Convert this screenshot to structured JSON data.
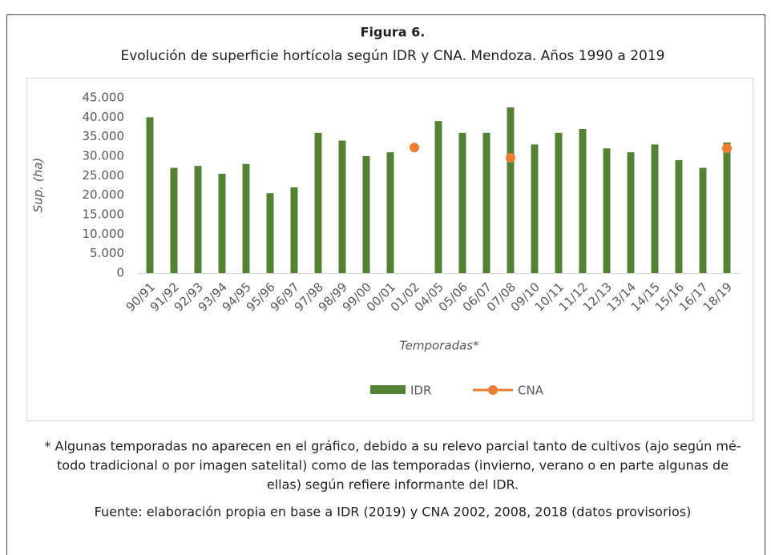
{
  "chart_data": {
    "type": "bar",
    "title": "Figura 6.",
    "subtitle": "Evolución de superficie hortícola según IDR y CNA. Mendoza. Años 1990 a 2019",
    "y_label": "Sup. (ha)",
    "x_label": "Temporadas*",
    "categories": [
      "90/91",
      "91/92",
      "92/93",
      "93/94",
      "94/95",
      "95/96",
      "96/97",
      "97/98",
      "98/99",
      "99/00",
      "00/01",
      "01/02",
      "04/05",
      "05/06",
      "06/07",
      "07/08",
      "09/10",
      "10/11",
      "11/12",
      "12/13",
      "13/14",
      "14/15",
      "15/16",
      "16/17",
      "18/19"
    ],
    "series": [
      {
        "name": "IDR",
        "type": "bar",
        "color": "#548235",
        "values": [
          40000,
          27000,
          27500,
          25500,
          28000,
          20500,
          22000,
          36000,
          34000,
          30000,
          31000,
          null,
          39000,
          36000,
          36000,
          42500,
          33000,
          36000,
          37000,
          32000,
          31000,
          33000,
          29000,
          27000,
          33500
        ]
      },
      {
        "name": "CNA",
        "type": "scatter",
        "color": "#ED7D31",
        "values": [
          null,
          null,
          null,
          null,
          null,
          null,
          null,
          null,
          null,
          null,
          null,
          32200,
          null,
          null,
          null,
          29600,
          null,
          null,
          null,
          null,
          null,
          null,
          null,
          null,
          32000
        ]
      }
    ],
    "ylim": [
      0,
      45000
    ],
    "yticks": [
      0,
      {
        "value": 5000,
        "label": "5.000"
      },
      {
        "value": 10000,
        "label": "10.000"
      },
      {
        "value": 15000,
        "label": "15.000"
      },
      {
        "value": 20000,
        "label": "20.000"
      },
      {
        "value": 25000,
        "label": "25.000"
      },
      {
        "value": 30000,
        "label": "30.000"
      },
      {
        "value": 35000,
        "label": "35.000"
      },
      {
        "value": 40000,
        "label": "40.000"
      },
      {
        "value": 45000,
        "label": "45.000"
      }
    ],
    "grid": false,
    "legend": "bottom",
    "footnote": [
      "* Algunas temporadas no aparecen en el gráfico, debido a su relevo parcial tanto de cultivos (ajo según mé-",
      "todo tradicional o por imagen satelital) como de las temporadas (invierno, verano o en parte algunas de",
      "ellas) según refiere informante del IDR."
    ],
    "source": "Fuente: elaboración propia en base a IDR (2019) y CNA 2002, 2008, 2018 (datos provisorios)"
  }
}
